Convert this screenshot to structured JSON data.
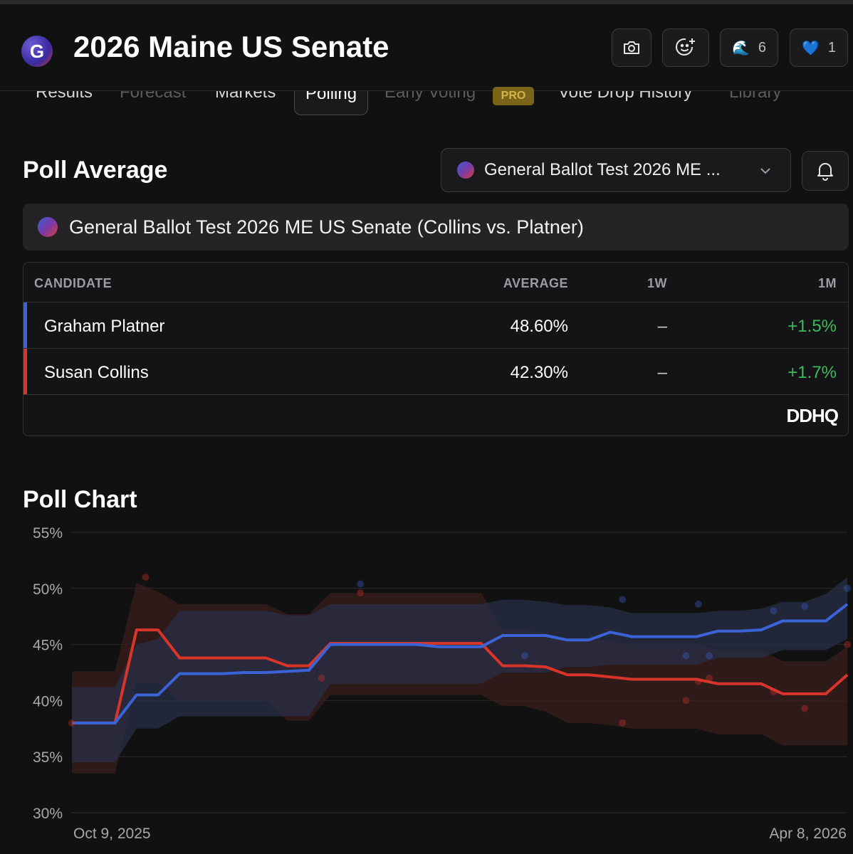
{
  "header": {
    "logo_letter": "G",
    "title": "2026 Maine US Senate",
    "buttons": [
      {
        "icon": "camera-icon"
      },
      {
        "icon": "smiley-add-icon"
      },
      {
        "icon": "wave-emoji-icon",
        "count": "6"
      },
      {
        "icon": "blue-heart-emoji-icon",
        "count": "1"
      }
    ]
  },
  "tabs": [
    {
      "label": "Results",
      "state": "normal"
    },
    {
      "label": "Forecast",
      "state": "dim"
    },
    {
      "label": "Markets",
      "state": "normal"
    },
    {
      "label": "Polling",
      "state": "active"
    },
    {
      "label": "Early Voting",
      "state": "dim",
      "badge": "PRO"
    },
    {
      "label": "Vote Drop History",
      "state": "normal"
    },
    {
      "label": "Library",
      "state": "dim"
    }
  ],
  "poll_average": {
    "heading": "Poll Average",
    "select_value": "General Ballot Test 2026 ME ...",
    "banner_text": "General Ballot Test 2026 ME US Senate (Collins vs. Platner)",
    "columns": [
      "CANDIDATE",
      "AVERAGE",
      "1W",
      "1M"
    ],
    "rows": [
      {
        "name": "Graham Platner",
        "average": "48.60%",
        "w1": "–",
        "m1": "+1.5%",
        "color": "#3a63d8"
      },
      {
        "name": "Susan Collins",
        "average": "42.30%",
        "w1": "–",
        "m1": "+1.7%",
        "color": "#d8352a"
      }
    ],
    "source_logo": "DDHQ"
  },
  "poll_chart": {
    "heading": "Poll Chart"
  },
  "chart_data": {
    "type": "line",
    "x_labels": [
      "Oct 9, 2025",
      "Apr 8, 2026"
    ],
    "ylim": [
      30,
      55
    ],
    "y_ticks": [
      "55%",
      "50%",
      "45%",
      "40%",
      "35%",
      "30%"
    ],
    "grid": true,
    "series": [
      {
        "color": "#3a63d8",
        "band_color": "#2a2f4a",
        "values": [
          38.0,
          38.0,
          38.0,
          40.5,
          40.5,
          42.4,
          42.4,
          42.4,
          42.5,
          42.5,
          42.6,
          42.7,
          45.0,
          45.0,
          45.0,
          45.0,
          45.0,
          44.8,
          44.8,
          44.8,
          45.8,
          45.8,
          45.8,
          45.4,
          45.4,
          46.1,
          45.7,
          45.7,
          45.7,
          45.7,
          46.2,
          46.2,
          46.3,
          47.1,
          47.1,
          47.1,
          48.6
        ],
        "band_upper": [
          41.2,
          41.2,
          41.2,
          45.0,
          45.5,
          48.0,
          48.0,
          48.0,
          48.0,
          48.0,
          47.6,
          47.6,
          48.6,
          48.6,
          48.6,
          48.6,
          48.6,
          48.6,
          48.6,
          48.6,
          49.0,
          49.0,
          48.8,
          48.5,
          48.5,
          48.3,
          47.8,
          47.8,
          47.8,
          47.8,
          48.0,
          48.0,
          48.2,
          48.8,
          48.8,
          49.5,
          51.0
        ],
        "band_lower": [
          34.5,
          34.5,
          34.5,
          37.5,
          37.5,
          38.6,
          38.6,
          38.6,
          38.6,
          38.6,
          38.6,
          38.6,
          41.5,
          41.5,
          41.5,
          41.5,
          41.5,
          41.5,
          41.5,
          41.5,
          42.5,
          42.5,
          42.5,
          43.0,
          43.0,
          43.2,
          43.2,
          43.2,
          43.2,
          43.2,
          43.8,
          43.8,
          43.8,
          44.5,
          44.5,
          44.5,
          45.5
        ]
      },
      {
        "color": "#d8352a",
        "band_color": "#3a1e1c",
        "values": [
          38.0,
          38.0,
          38.0,
          46.3,
          46.3,
          43.8,
          43.8,
          43.8,
          43.8,
          43.8,
          43.1,
          43.1,
          45.1,
          45.1,
          45.1,
          45.1,
          45.1,
          45.1,
          45.1,
          45.1,
          43.1,
          43.1,
          43.0,
          42.3,
          42.3,
          42.1,
          41.9,
          41.9,
          41.9,
          41.9,
          41.5,
          41.5,
          41.5,
          40.6,
          40.6,
          40.6,
          42.3
        ],
        "band_upper": [
          42.6,
          42.6,
          42.6,
          50.5,
          49.7,
          48.6,
          48.6,
          48.6,
          48.6,
          48.6,
          47.7,
          47.7,
          49.6,
          49.6,
          49.6,
          49.6,
          49.6,
          49.6,
          49.6,
          49.6,
          46.3,
          46.3,
          46.0,
          45.5,
          45.5,
          45.3,
          45.0,
          45.0,
          45.0,
          45.0,
          44.5,
          44.5,
          44.5,
          43.5,
          43.5,
          43.5,
          44.8
        ],
        "band_lower": [
          33.5,
          33.5,
          33.5,
          41.6,
          41.6,
          40.0,
          40.0,
          40.0,
          40.0,
          40.0,
          38.2,
          38.2,
          40.5,
          40.5,
          40.5,
          40.5,
          40.5,
          40.5,
          40.5,
          40.5,
          39.5,
          39.5,
          39.0,
          38.0,
          38.0,
          37.8,
          37.5,
          37.5,
          37.5,
          37.5,
          37.0,
          37.0,
          37.0,
          36.0,
          36.0,
          36.0,
          36.0
        ]
      }
    ],
    "polls": [
      {
        "x": 0.0,
        "y": 38.0,
        "color": "#d8352a"
      },
      {
        "x": 0.095,
        "y": 51.0,
        "color": "#d8352a"
      },
      {
        "x": 0.322,
        "y": 42.0,
        "color": "#d8352a"
      },
      {
        "x": 0.372,
        "y": 49.6,
        "color": "#d8352a"
      },
      {
        "x": 0.372,
        "y": 50.4,
        "color": "#3a63d8"
      },
      {
        "x": 0.584,
        "y": 44.0,
        "color": "#3a63d8"
      },
      {
        "x": 0.71,
        "y": 49.0,
        "color": "#3a63d8"
      },
      {
        "x": 0.71,
        "y": 38.0,
        "color": "#d8352a"
      },
      {
        "x": 0.792,
        "y": 44.0,
        "color": "#3a63d8"
      },
      {
        "x": 0.792,
        "y": 40.0,
        "color": "#d8352a"
      },
      {
        "x": 0.808,
        "y": 48.6,
        "color": "#3a63d8"
      },
      {
        "x": 0.808,
        "y": 41.7,
        "color": "#d8352a"
      },
      {
        "x": 0.822,
        "y": 44.0,
        "color": "#3a63d8"
      },
      {
        "x": 0.822,
        "y": 42.0,
        "color": "#d8352a"
      },
      {
        "x": 0.905,
        "y": 48.0,
        "color": "#3a63d8"
      },
      {
        "x": 0.905,
        "y": 40.8,
        "color": "#d8352a"
      },
      {
        "x": 0.945,
        "y": 48.4,
        "color": "#3a63d8"
      },
      {
        "x": 0.945,
        "y": 39.3,
        "color": "#d8352a"
      },
      {
        "x": 1.0,
        "y": 50.0,
        "color": "#3a63d8"
      },
      {
        "x": 1.0,
        "y": 45.0,
        "color": "#d8352a"
      }
    ]
  }
}
